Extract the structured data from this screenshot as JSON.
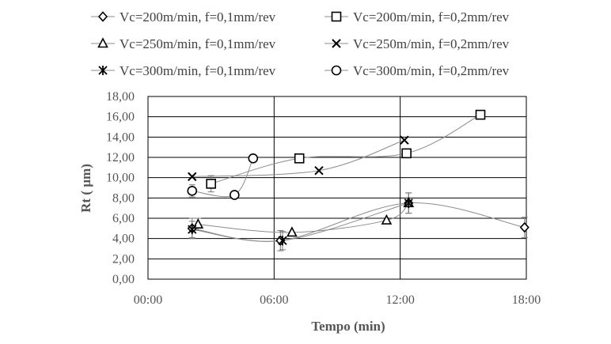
{
  "chart_data": {
    "type": "scatter",
    "title": "",
    "xlabel": "Tempo (min)",
    "ylabel": "Rt ( µm)",
    "xlim": [
      0,
      1080
    ],
    "ylim": [
      0,
      18
    ],
    "x_ticks": [
      {
        "value": 0,
        "label": "00:00"
      },
      {
        "value": 360,
        "label": "06:00"
      },
      {
        "value": 720,
        "label": "12:00"
      },
      {
        "value": 1080,
        "label": "18:00"
      }
    ],
    "y_ticks": [
      {
        "value": 0,
        "label": "0,00"
      },
      {
        "value": 2,
        "label": "2,00"
      },
      {
        "value": 4,
        "label": "4,00"
      },
      {
        "value": 6,
        "label": "6,00"
      },
      {
        "value": 8,
        "label": "8,00"
      },
      {
        "value": 10,
        "label": "10,00"
      },
      {
        "value": 12,
        "label": "12,00"
      },
      {
        "value": 14,
        "label": "14,00"
      },
      {
        "value": 16,
        "label": "16,00"
      },
      {
        "value": 18,
        "label": "18,00"
      }
    ],
    "grid": true,
    "legend_position": "top",
    "series": [
      {
        "name": "Vc=200m/min, f=0,1mm/rev",
        "marker": "diamond",
        "x": [
          126,
          378,
          744,
          1075
        ],
        "y": [
          5.0,
          3.8,
          7.5,
          5.1
        ],
        "err": [
          1.0,
          1.0,
          1.0,
          1.0
        ]
      },
      {
        "name": "Vc=200m/min, f=0,2mm/rev",
        "marker": "square",
        "x": [
          180,
          432,
          738,
          949
        ],
        "y": [
          9.4,
          11.9,
          12.4,
          16.2
        ],
        "err": [
          0.8,
          0,
          0,
          0
        ]
      },
      {
        "name": "Vc=250m/min, f=0,1mm/rev",
        "marker": "triangle",
        "x": [
          143,
          411,
          681,
          744
        ],
        "y": [
          5.4,
          4.6,
          5.8,
          7.5
        ],
        "err": [
          0.6,
          0,
          0,
          1.0
        ]
      },
      {
        "name": "Vc=250m/min, f=0,2mm/rev",
        "marker": "x",
        "x": [
          126,
          488,
          732
        ],
        "y": [
          10.1,
          10.7,
          13.7
        ],
        "err": [
          0,
          0,
          0
        ]
      },
      {
        "name": "Vc=300m/min, f=0,1mm/rev",
        "marker": "star",
        "x": [
          126,
          384,
          744
        ],
        "y": [
          4.9,
          3.8,
          7.5
        ],
        "err": [
          0.8,
          0.9,
          1.0
        ]
      },
      {
        "name": "Vc=300m/min, f=0,2mm/rev",
        "marker": "circle",
        "x": [
          126,
          247,
          300
        ],
        "y": [
          8.7,
          8.3,
          11.9
        ],
        "err": [
          0.6,
          0,
          0
        ]
      }
    ]
  }
}
